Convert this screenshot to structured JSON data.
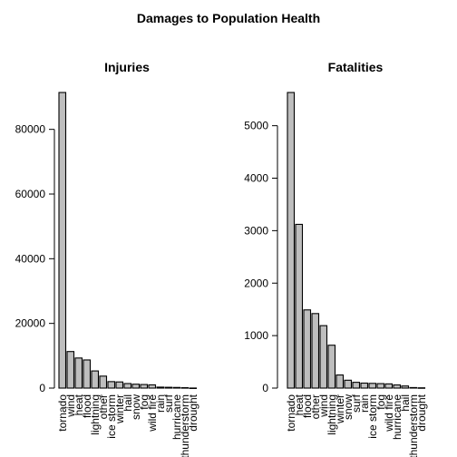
{
  "title": "Damages to Population Health",
  "chart_data": [
    {
      "type": "bar",
      "title": "Injuries",
      "xlabel": "",
      "ylabel": "",
      "ylim": [
        0,
        91400
      ],
      "yticks": [
        0,
        20000,
        40000,
        60000,
        80000
      ],
      "categories": [
        "tornado",
        "wind",
        "heat",
        "flood",
        "lightning",
        "other",
        "ice storm",
        "winter",
        "hail",
        "snow",
        "fog",
        "wild fire",
        "rain",
        "surf",
        "hurricane",
        "thunderstorm",
        "drought"
      ],
      "values": [
        91400,
        11300,
        9300,
        8700,
        5300,
        3700,
        2000,
        1900,
        1400,
        1200,
        1100,
        1000,
        300,
        250,
        200,
        120,
        20
      ],
      "bar_fill": "#bebebe",
      "bar_stroke": "#000000"
    },
    {
      "type": "bar",
      "title": "Fatalities",
      "xlabel": "",
      "ylabel": "",
      "ylim": [
        0,
        5633
      ],
      "yticks": [
        0,
        1000,
        2000,
        3000,
        4000,
        5000
      ],
      "categories": [
        "tornado",
        "heat",
        "flood",
        "other",
        "wind",
        "lightning",
        "winter",
        "snow",
        "surf",
        "rain",
        "ice storm",
        "fog",
        "wild fire",
        "hurricane",
        "hail",
        "thunderstorm",
        "drought"
      ],
      "values": [
        5633,
        3120,
        1490,
        1420,
        1190,
        817,
        250,
        150,
        110,
        95,
        90,
        85,
        80,
        60,
        40,
        10,
        5
      ],
      "bar_fill": "#bebebe",
      "bar_stroke": "#000000"
    }
  ]
}
